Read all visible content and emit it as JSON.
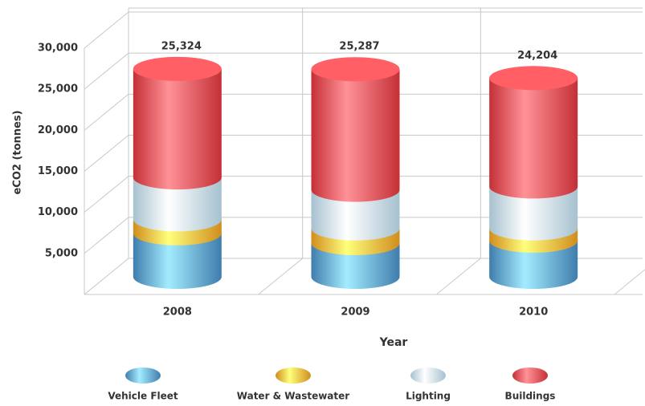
{
  "chart_data": {
    "type": "stacked-cylinder",
    "categories": [
      "2008",
      "2009",
      "2010"
    ],
    "series": [
      {
        "name": "Vehicle Fleet",
        "color": "#4a93cc",
        "values": [
          5300,
          4100,
          4400
        ]
      },
      {
        "name": "Water & Wastewater",
        "color": "#f5a623",
        "values": [
          1700,
          1800,
          1500
        ]
      },
      {
        "name": "Lighting",
        "color": "#c3e3f3",
        "values": [
          5100,
          4700,
          5100
        ]
      },
      {
        "name": "Buildings",
        "color": "#e6393f",
        "values": [
          13224,
          14687,
          13204
        ]
      }
    ],
    "totals": {
      "values": [
        25324,
        25287,
        24204
      ],
      "value_labels": [
        "25,324",
        "25,287",
        "24,204"
      ]
    },
    "y_label": "eCO2 (tonnes)",
    "x_label": "Year",
    "ylim": [
      0,
      30000
    ],
    "yticks": [
      {
        "value": 5000,
        "label": "5,000"
      },
      {
        "value": 10000,
        "label": "10,000"
      },
      {
        "value": 15000,
        "label": "15,000"
      },
      {
        "value": 20000,
        "label": "20,000"
      },
      {
        "value": 25000,
        "label": "25,000"
      },
      {
        "value": 30000,
        "label": "30,000"
      }
    ],
    "grid": true,
    "legend": "bottom"
  }
}
